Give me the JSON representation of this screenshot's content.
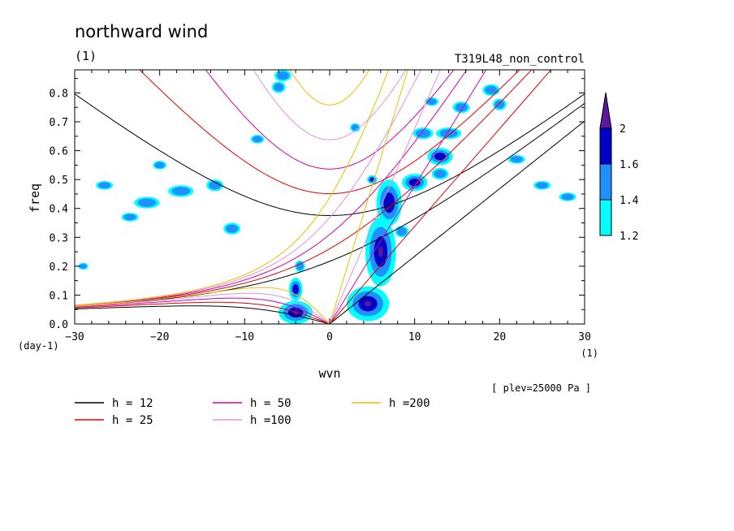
{
  "chart_data": {
    "type": "contour",
    "title": "northward wind",
    "subtitle": "(1)",
    "experiment": "T319L48_non_control",
    "xlabel": "wvn",
    "xunit": "(1)",
    "ylabel": "freq",
    "yunit": "(day-1)",
    "xlim": [
      -30,
      30
    ],
    "ylim": [
      0,
      0.88
    ],
    "xticks": [
      -30,
      -20,
      -10,
      0,
      10,
      20,
      30
    ],
    "xtick_labels": [
      "−30",
      "−20",
      "−10",
      "0",
      "10",
      "20",
      "30"
    ],
    "yticks": [
      0,
      0.1,
      0.2,
      0.3,
      0.4,
      0.5,
      0.6,
      0.7,
      0.8
    ],
    "ytick_labels": [
      "0.0",
      "0.1",
      "0.2",
      "0.3",
      "0.4",
      "0.5",
      "0.6",
      "0.7",
      "0.8"
    ],
    "level_note": "[ plev=25000 Pa ]",
    "colorbar": {
      "levels": [
        "1.2",
        "1.4",
        "1.6",
        "2"
      ],
      "colors": [
        "#00ffff",
        "#1e90ff",
        "#0000c8",
        "#5a189a"
      ]
    },
    "dispersion_curves": [
      {
        "label": "h = 12",
        "h": 12,
        "color": "#000000"
      },
      {
        "label": "h = 25",
        "h": 25,
        "color": "#e00000"
      },
      {
        "label": "h = 50",
        "h": 50,
        "color": "#d000b0"
      },
      {
        "label": "h =100",
        "h": 100,
        "color": "#e090e0"
      },
      {
        "label": "h =200",
        "h": 200,
        "color": "#e8c000"
      }
    ],
    "blobs": [
      {
        "x": 4.5,
        "y": 0.07,
        "rx": 2.5,
        "ry": 0.06,
        "lvl": 3
      },
      {
        "x": 6.0,
        "y": 0.25,
        "rx": 1.8,
        "ry": 0.12,
        "lvl": 3
      },
      {
        "x": 7.0,
        "y": 0.42,
        "rx": 1.5,
        "ry": 0.08,
        "lvl": 2
      },
      {
        "x": -4.0,
        "y": 0.04,
        "rx": 2.0,
        "ry": 0.04,
        "lvl": 3
      },
      {
        "x": -4.0,
        "y": 0.12,
        "rx": 0.8,
        "ry": 0.04,
        "lvl": 2
      },
      {
        "x": 10.0,
        "y": 0.49,
        "rx": 1.5,
        "ry": 0.03,
        "lvl": 2
      },
      {
        "x": 13.0,
        "y": 0.58,
        "rx": 1.5,
        "ry": 0.03,
        "lvl": 2
      },
      {
        "x": 11.0,
        "y": 0.66,
        "rx": 1.2,
        "ry": 0.02,
        "lvl": 1
      },
      {
        "x": 14.0,
        "y": 0.66,
        "rx": 1.5,
        "ry": 0.02,
        "lvl": 1
      },
      {
        "x": 13.0,
        "y": 0.52,
        "rx": 1.0,
        "ry": 0.02,
        "lvl": 1
      },
      {
        "x": 15.5,
        "y": 0.75,
        "rx": 1.0,
        "ry": 0.02,
        "lvl": 1
      },
      {
        "x": 12.0,
        "y": 0.77,
        "rx": 0.8,
        "ry": 0.015,
        "lvl": 1
      },
      {
        "x": 19.0,
        "y": 0.81,
        "rx": 1.0,
        "ry": 0.02,
        "lvl": 1
      },
      {
        "x": -6.0,
        "y": 0.82,
        "rx": 0.8,
        "ry": 0.02,
        "lvl": 1
      },
      {
        "x": -5.5,
        "y": 0.86,
        "rx": 1.0,
        "ry": 0.02,
        "lvl": 1
      },
      {
        "x": -26.5,
        "y": 0.48,
        "rx": 1.0,
        "ry": 0.015,
        "lvl": 1
      },
      {
        "x": -21.5,
        "y": 0.42,
        "rx": 1.5,
        "ry": 0.02,
        "lvl": 1
      },
      {
        "x": -17.5,
        "y": 0.46,
        "rx": 1.5,
        "ry": 0.02,
        "lvl": 1
      },
      {
        "x": -13.5,
        "y": 0.48,
        "rx": 1.0,
        "ry": 0.02,
        "lvl": 1
      },
      {
        "x": -11.5,
        "y": 0.33,
        "rx": 1.0,
        "ry": 0.02,
        "lvl": 1
      },
      {
        "x": -23.5,
        "y": 0.37,
        "rx": 1.0,
        "ry": 0.015,
        "lvl": 1
      },
      {
        "x": -20.0,
        "y": 0.55,
        "rx": 0.8,
        "ry": 0.015,
        "lvl": 1
      },
      {
        "x": 22.0,
        "y": 0.57,
        "rx": 1.0,
        "ry": 0.015,
        "lvl": 1
      },
      {
        "x": 25.0,
        "y": 0.48,
        "rx": 1.0,
        "ry": 0.015,
        "lvl": 1
      },
      {
        "x": 28.0,
        "y": 0.44,
        "rx": 1.0,
        "ry": 0.015,
        "lvl": 1
      },
      {
        "x": -3.5,
        "y": 0.2,
        "rx": 0.6,
        "ry": 0.02,
        "lvl": 1
      },
      {
        "x": 8.5,
        "y": 0.32,
        "rx": 0.8,
        "ry": 0.02,
        "lvl": 1
      },
      {
        "x": -29.0,
        "y": 0.2,
        "rx": 0.6,
        "ry": 0.012,
        "lvl": 1
      },
      {
        "x": -8.5,
        "y": 0.64,
        "rx": 0.8,
        "ry": 0.015,
        "lvl": 1
      },
      {
        "x": 3.0,
        "y": 0.68,
        "rx": 0.6,
        "ry": 0.015,
        "lvl": 1
      },
      {
        "x": 20.0,
        "y": 0.76,
        "rx": 0.8,
        "ry": 0.02,
        "lvl": 1
      },
      {
        "x": 5.0,
        "y": 0.5,
        "rx": 0.6,
        "ry": 0.015,
        "lvl": 2
      }
    ]
  }
}
